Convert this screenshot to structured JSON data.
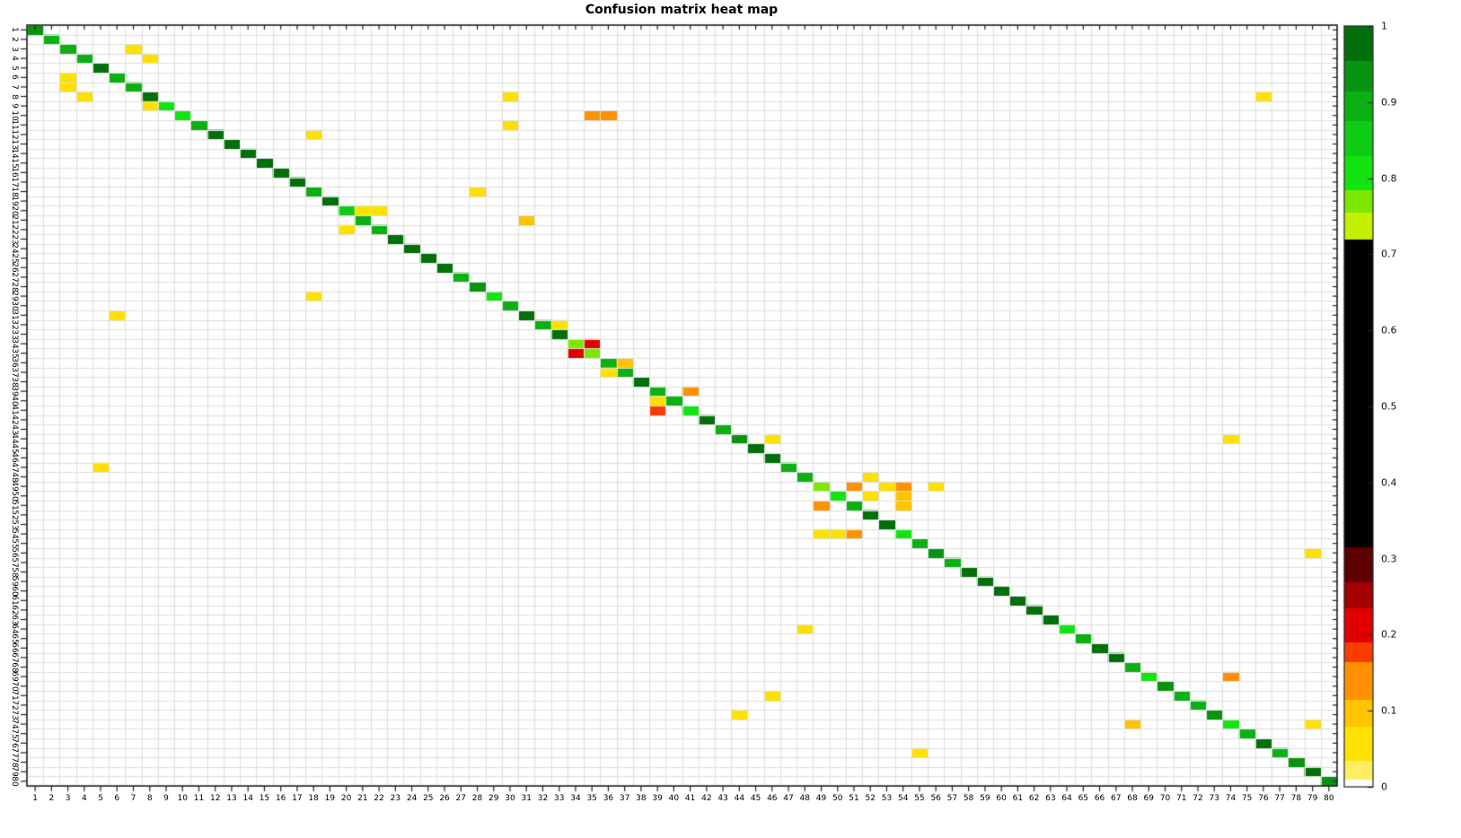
{
  "title": "Confusion matrix heat map",
  "axes": {
    "x_tick_labels": [
      "1",
      "2",
      "3",
      "4",
      "5",
      "6",
      "7",
      "8",
      "9",
      "10",
      "11",
      "12",
      "13",
      "14",
      "15",
      "16",
      "17",
      "18",
      "19",
      "20",
      "21",
      "22",
      "23",
      "24",
      "25",
      "26",
      "27",
      "28",
      "29",
      "30",
      "31",
      "32",
      "33",
      "34",
      "35",
      "36",
      "37",
      "38",
      "39",
      "40",
      "41",
      "42",
      "43",
      "44",
      "45",
      "46",
      "47",
      "48",
      "49",
      "50",
      "51",
      "52",
      "53",
      "54",
      "55",
      "56",
      "57",
      "58",
      "59",
      "60",
      "61",
      "62",
      "63",
      "64",
      "65",
      "66",
      "67",
      "68",
      "69",
      "70",
      "71",
      "72",
      "73",
      "74",
      "75",
      "76",
      "77",
      "78",
      "79",
      "80"
    ],
    "y_tick_labels": [
      "1",
      "2",
      "3",
      "4",
      "5",
      "6",
      "7",
      "8",
      "9",
      "10",
      "11",
      "12",
      "13",
      "14",
      "15",
      "16",
      "17",
      "18",
      "19",
      "20",
      "21",
      "22",
      "23",
      "24",
      "25",
      "26",
      "27",
      "28",
      "29",
      "30",
      "31",
      "32",
      "33",
      "34",
      "35",
      "36",
      "37",
      "38",
      "39",
      "40",
      "41",
      "42",
      "43",
      "44",
      "45",
      "46",
      "47",
      "48",
      "49",
      "50",
      "51",
      "52",
      "53",
      "54",
      "55",
      "56",
      "57",
      "58",
      "59",
      "60",
      "61",
      "62",
      "63",
      "64",
      "65",
      "66",
      "67",
      "68",
      "69",
      "70",
      "71",
      "72",
      "73",
      "74",
      "75",
      "76",
      "77",
      "78",
      "79",
      "80"
    ]
  },
  "colorbar": {
    "tick_labels": [
      "1",
      "0.9",
      "0.8",
      "0.7",
      "0.6",
      "0.5",
      "0.4",
      "0.3",
      "0.2",
      "0.1",
      "0"
    ],
    "tick_values": [
      1,
      0.9,
      0.8,
      0.7,
      0.6,
      0.5,
      0.4,
      0.3,
      0.2,
      0.1,
      0
    ]
  },
  "chart_data": {
    "type": "heatmap",
    "title": "Confusion matrix heat map",
    "n_classes": 80,
    "x_range": [
      1,
      80
    ],
    "y_range": [
      1,
      80
    ],
    "value_range": [
      0,
      1
    ],
    "grid": true,
    "legend_position": "right-colorbar",
    "colormap_bands": [
      {
        "max": 0.01,
        "color": "#ffffff"
      },
      {
        "max": 0.035,
        "color": "#ffef60"
      },
      {
        "max": 0.08,
        "color": "#ffe100"
      },
      {
        "max": 0.115,
        "color": "#ffc400"
      },
      {
        "max": 0.165,
        "color": "#ff9100"
      },
      {
        "max": 0.19,
        "color": "#fa3c00"
      },
      {
        "max": 0.235,
        "color": "#e00000"
      },
      {
        "max": 0.27,
        "color": "#a50000"
      },
      {
        "max": 0.315,
        "color": "#5c0000"
      },
      {
        "max": 0.72,
        "color": "#000000"
      },
      {
        "max": 0.755,
        "color": "#c3f000"
      },
      {
        "max": 0.785,
        "color": "#7ce800"
      },
      {
        "max": 0.83,
        "color": "#12e412"
      },
      {
        "max": 0.875,
        "color": "#0ecc14"
      },
      {
        "max": 0.915,
        "color": "#0bb013"
      },
      {
        "max": 0.955,
        "color": "#089410"
      },
      {
        "max": 1.0,
        "color": "#02700a"
      }
    ],
    "diagonal": [
      0.93,
      0.89,
      0.89,
      0.88,
      0.96,
      0.9,
      0.89,
      0.96,
      0.8,
      0.82,
      0.9,
      0.96,
      0.97,
      0.99,
      0.99,
      0.97,
      0.96,
      0.9,
      0.96,
      0.84,
      0.9,
      0.88,
      0.96,
      0.97,
      0.98,
      0.96,
      0.9,
      0.94,
      0.82,
      0.88,
      0.98,
      0.9,
      0.97,
      0.77,
      0.76,
      0.88,
      0.9,
      0.97,
      0.9,
      0.88,
      0.8,
      0.96,
      0.9,
      0.92,
      0.96,
      0.97,
      0.9,
      0.88,
      0.77,
      0.81,
      0.88,
      0.96,
      0.97,
      0.79,
      0.9,
      0.92,
      0.9,
      0.96,
      0.99,
      0.98,
      0.97,
      0.96,
      0.97,
      0.81,
      0.9,
      0.96,
      0.97,
      0.88,
      0.81,
      0.93,
      0.9,
      0.88,
      0.93,
      0.81,
      0.9,
      0.98,
      0.9,
      0.92,
      0.96,
      0.95
    ],
    "off_diagonal": [
      {
        "row": 3,
        "col": 7,
        "value": 0.05
      },
      {
        "row": 4,
        "col": 8,
        "value": 0.05
      },
      {
        "row": 6,
        "col": 3,
        "value": 0.05
      },
      {
        "row": 7,
        "col": 3,
        "value": 0.06
      },
      {
        "row": 8,
        "col": 4,
        "value": 0.05
      },
      {
        "row": 8,
        "col": 30,
        "value": 0.05
      },
      {
        "row": 8,
        "col": 76,
        "value": 0.04
      },
      {
        "row": 9,
        "col": 8,
        "value": 0.06
      },
      {
        "row": 10,
        "col": 35,
        "value": 0.13
      },
      {
        "row": 10,
        "col": 36,
        "value": 0.14
      },
      {
        "row": 11,
        "col": 30,
        "value": 0.05
      },
      {
        "row": 12,
        "col": 18,
        "value": 0.05
      },
      {
        "row": 18,
        "col": 28,
        "value": 0.05
      },
      {
        "row": 20,
        "col": 21,
        "value": 0.06
      },
      {
        "row": 20,
        "col": 22,
        "value": 0.05
      },
      {
        "row": 21,
        "col": 31,
        "value": 0.1
      },
      {
        "row": 22,
        "col": 20,
        "value": 0.06
      },
      {
        "row": 29,
        "col": 18,
        "value": 0.05
      },
      {
        "row": 31,
        "col": 6,
        "value": 0.05
      },
      {
        "row": 32,
        "col": 33,
        "value": 0.06
      },
      {
        "row": 34,
        "col": 35,
        "value": 0.21
      },
      {
        "row": 35,
        "col": 34,
        "value": 0.22
      },
      {
        "row": 36,
        "col": 37,
        "value": 0.1
      },
      {
        "row": 37,
        "col": 36,
        "value": 0.06
      },
      {
        "row": 39,
        "col": 41,
        "value": 0.14
      },
      {
        "row": 40,
        "col": 39,
        "value": 0.06
      },
      {
        "row": 41,
        "col": 39,
        "value": 0.18
      },
      {
        "row": 44,
        "col": 46,
        "value": 0.05
      },
      {
        "row": 44,
        "col": 74,
        "value": 0.04
      },
      {
        "row": 47,
        "col": 5,
        "value": 0.05
      },
      {
        "row": 48,
        "col": 52,
        "value": 0.06
      },
      {
        "row": 49,
        "col": 51,
        "value": 0.13
      },
      {
        "row": 49,
        "col": 53,
        "value": 0.07
      },
      {
        "row": 49,
        "col": 54,
        "value": 0.14
      },
      {
        "row": 49,
        "col": 56,
        "value": 0.05
      },
      {
        "row": 50,
        "col": 52,
        "value": 0.06
      },
      {
        "row": 50,
        "col": 54,
        "value": 0.1
      },
      {
        "row": 51,
        "col": 49,
        "value": 0.13
      },
      {
        "row": 51,
        "col": 54,
        "value": 0.1
      },
      {
        "row": 54,
        "col": 49,
        "value": 0.06
      },
      {
        "row": 54,
        "col": 50,
        "value": 0.05
      },
      {
        "row": 54,
        "col": 51,
        "value": 0.13
      },
      {
        "row": 56,
        "col": 79,
        "value": 0.04
      },
      {
        "row": 64,
        "col": 48,
        "value": 0.05
      },
      {
        "row": 69,
        "col": 74,
        "value": 0.13
      },
      {
        "row": 71,
        "col": 46,
        "value": 0.05
      },
      {
        "row": 73,
        "col": 44,
        "value": 0.05
      },
      {
        "row": 74,
        "col": 68,
        "value": 0.1
      },
      {
        "row": 74,
        "col": 79,
        "value": 0.05
      },
      {
        "row": 77,
        "col": 55,
        "value": 0.05
      }
    ]
  }
}
